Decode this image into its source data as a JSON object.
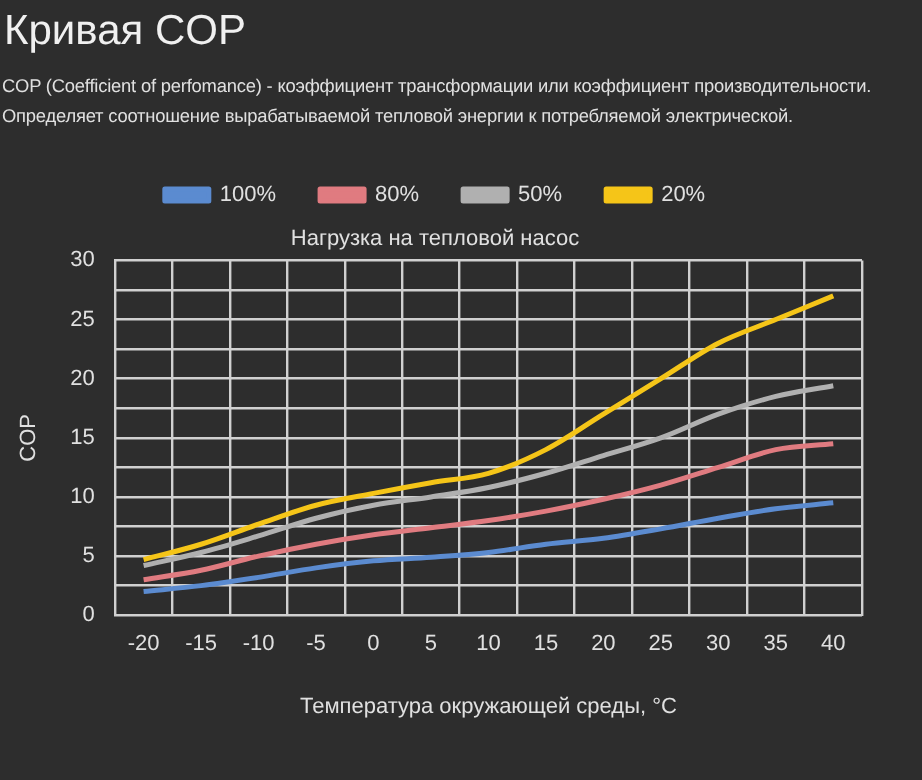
{
  "chart_data": {
    "type": "line",
    "title": "Кривая COP",
    "subtitle": "COP (Coefficient of perfomance) - коэффициент трансформации или коэффициент производительности. Определяет соотношение вырабатываемой тепловой энергии к потребляемой электрической.",
    "legend_title": "Нагрузка на тепловой насос",
    "xlabel": "Температура окружающей среды, °C",
    "ylabel": "COP",
    "categories": [
      "-20",
      "-15",
      "-10",
      "-5",
      "0",
      "5",
      "10",
      "15",
      "20",
      "25",
      "30",
      "35",
      "40"
    ],
    "series": [
      {
        "name": "100%",
        "color": "#5b8bd0",
        "values": [
          2,
          2.5,
          3.2,
          4,
          4.6,
          4.9,
          5.3,
          6,
          6.5,
          7.3,
          8.2,
          9,
          9.5
        ]
      },
      {
        "name": "80%",
        "color": "#e07b80",
        "values": [
          3,
          3.8,
          5,
          6,
          6.8,
          7.4,
          8,
          8.8,
          9.8,
          11,
          12.5,
          14,
          14.5
        ]
      },
      {
        "name": "50%",
        "color": "#b0b0b0",
        "values": [
          4.2,
          5.3,
          6.7,
          8.2,
          9.3,
          10,
          10.8,
          12,
          13.5,
          15,
          17,
          18.5,
          19.4
        ]
      },
      {
        "name": "20%",
        "color": "#f5c518",
        "values": [
          4.7,
          6,
          7.7,
          9.3,
          10.3,
          11.2,
          12,
          14,
          17,
          20,
          23,
          25,
          27
        ]
      }
    ],
    "ylim": [
      0,
      30
    ],
    "yticks": [
      0,
      {
        "value": 2.5,
        "label": null
      },
      5,
      {
        "value": 7.5,
        "label": null
      },
      10,
      {
        "value": 12.5,
        "label": null
      },
      15,
      {
        "value": 17.5,
        "label": null
      },
      20,
      {
        "value": 22.5,
        "label": null
      },
      25,
      {
        "value": 27.5,
        "label": null
      },
      30
    ],
    "grid": true,
    "legend": "top",
    "marker": "none",
    "line_style": "solid"
  }
}
